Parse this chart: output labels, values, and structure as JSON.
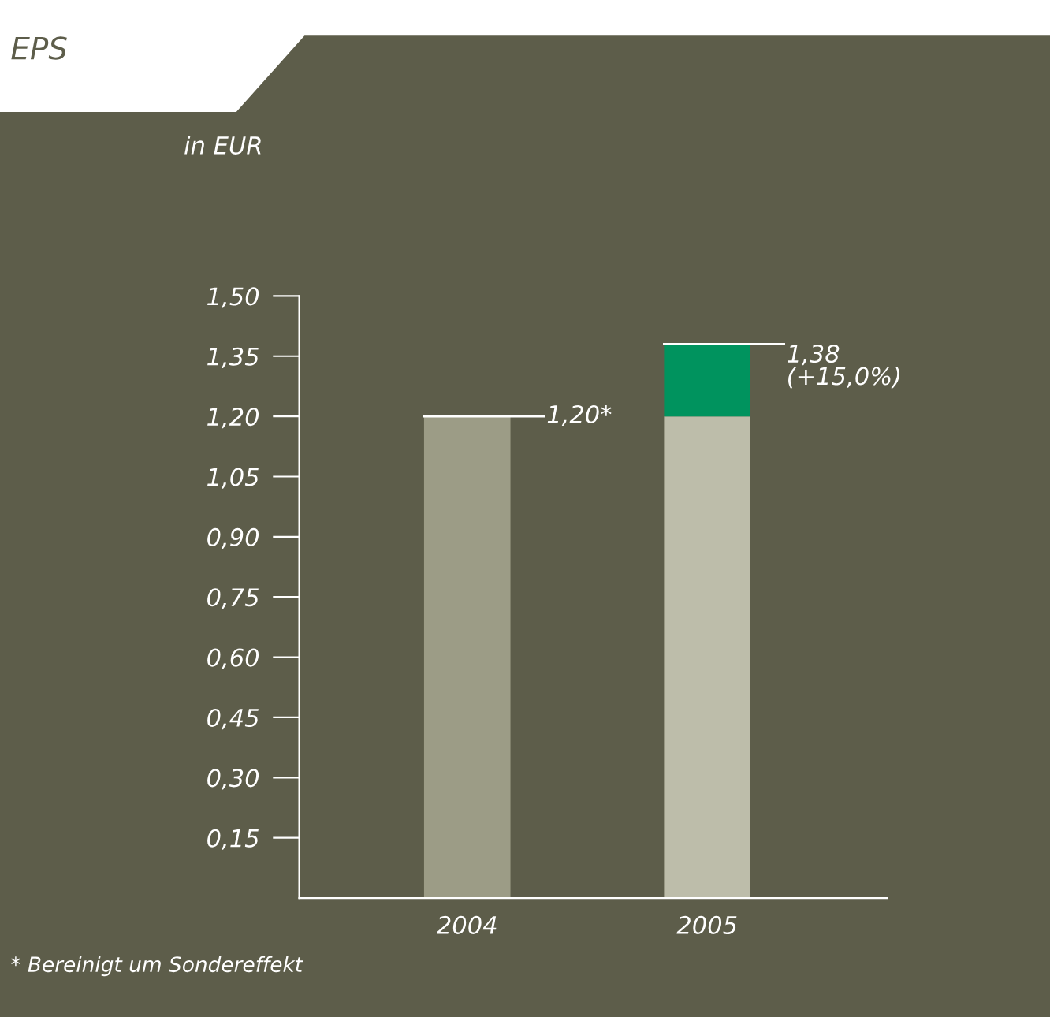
{
  "chart_data": {
    "type": "bar",
    "title": "EPS",
    "stacked": true,
    "categories": [
      "2004",
      "2005"
    ],
    "series": [
      {
        "colors": [
          "#9c9c86",
          "#bdbdaa"
        ],
        "values": [
          1.2,
          1.2
        ]
      },
      {
        "color": "#00935e",
        "values": [
          null,
          0.18
        ]
      }
    ],
    "totals": [
      "1,20*",
      "1,38\n(+15,0%)"
    ],
    "ylim": [
      0,
      1.5
    ],
    "yticks": [
      {
        "value": 0.15,
        "label": "0,15"
      },
      {
        "value": 0.3,
        "label": "0,30"
      },
      {
        "value": 0.45,
        "label": "0,45"
      },
      {
        "value": 0.6,
        "label": "0,60"
      },
      {
        "value": 0.75,
        "label": "0,75"
      },
      {
        "value": 0.9,
        "label": "0,90"
      },
      {
        "value": 1.05,
        "label": "1,05"
      },
      {
        "value": 1.2,
        "label": "1,20"
      },
      {
        "value": 1.35,
        "label": "1,35"
      },
      {
        "value": 1.5,
        "label": "1,50"
      }
    ],
    "grid": false,
    "legend": false,
    "annotations": [
      "in EUR",
      "* Bereinigt um Sondereffekt"
    ]
  }
}
